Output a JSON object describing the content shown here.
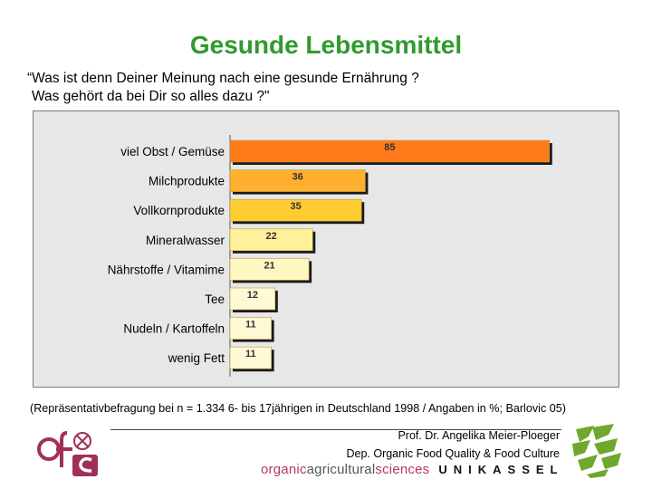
{
  "title": "Gesunde Lebensmittel",
  "question": {
    "line1": "“Was ist denn Deiner Meinung nach eine gesunde Ernährung ?",
    "line2": "Was gehört da bei Dir so alles dazu ?\""
  },
  "chart_data": {
    "type": "bar",
    "orientation": "horizontal",
    "categories": [
      "viel Obst / Gemüse",
      "Milchprodukte",
      "Vollkornprodukte",
      "Mineralwasser",
      "Nährstoffe / Vitamime",
      "Tee",
      "Nudeln / Kartoffeln",
      "wenig Fett"
    ],
    "values": [
      85,
      36,
      35,
      22,
      21,
      12,
      11,
      11
    ],
    "colors": [
      "#ff7a1a",
      "#ffb02e",
      "#ffcc33",
      "#fff199",
      "#fff6c2",
      "#fffad6",
      "#fffad6",
      "#fffad6"
    ],
    "xlim": [
      0,
      100
    ],
    "grid": false,
    "title": "",
    "xlabel": "",
    "ylabel": ""
  },
  "source_note": "(Repräsentativbefragung bei n = 1.334 6- bis 17jährigen in Deutschland 1998 / Angaben in %; Barlovic 05)",
  "credits": {
    "line1": "Prof. Dr. Angelika Meier-Ploeger",
    "line2": "Dep. Organic Food Quality & Food Culture"
  },
  "footer": {
    "brand_part1": "organic",
    "brand_part2": "agricultural",
    "brand_part3": "sciences",
    "university": "UNIKASSEL"
  }
}
